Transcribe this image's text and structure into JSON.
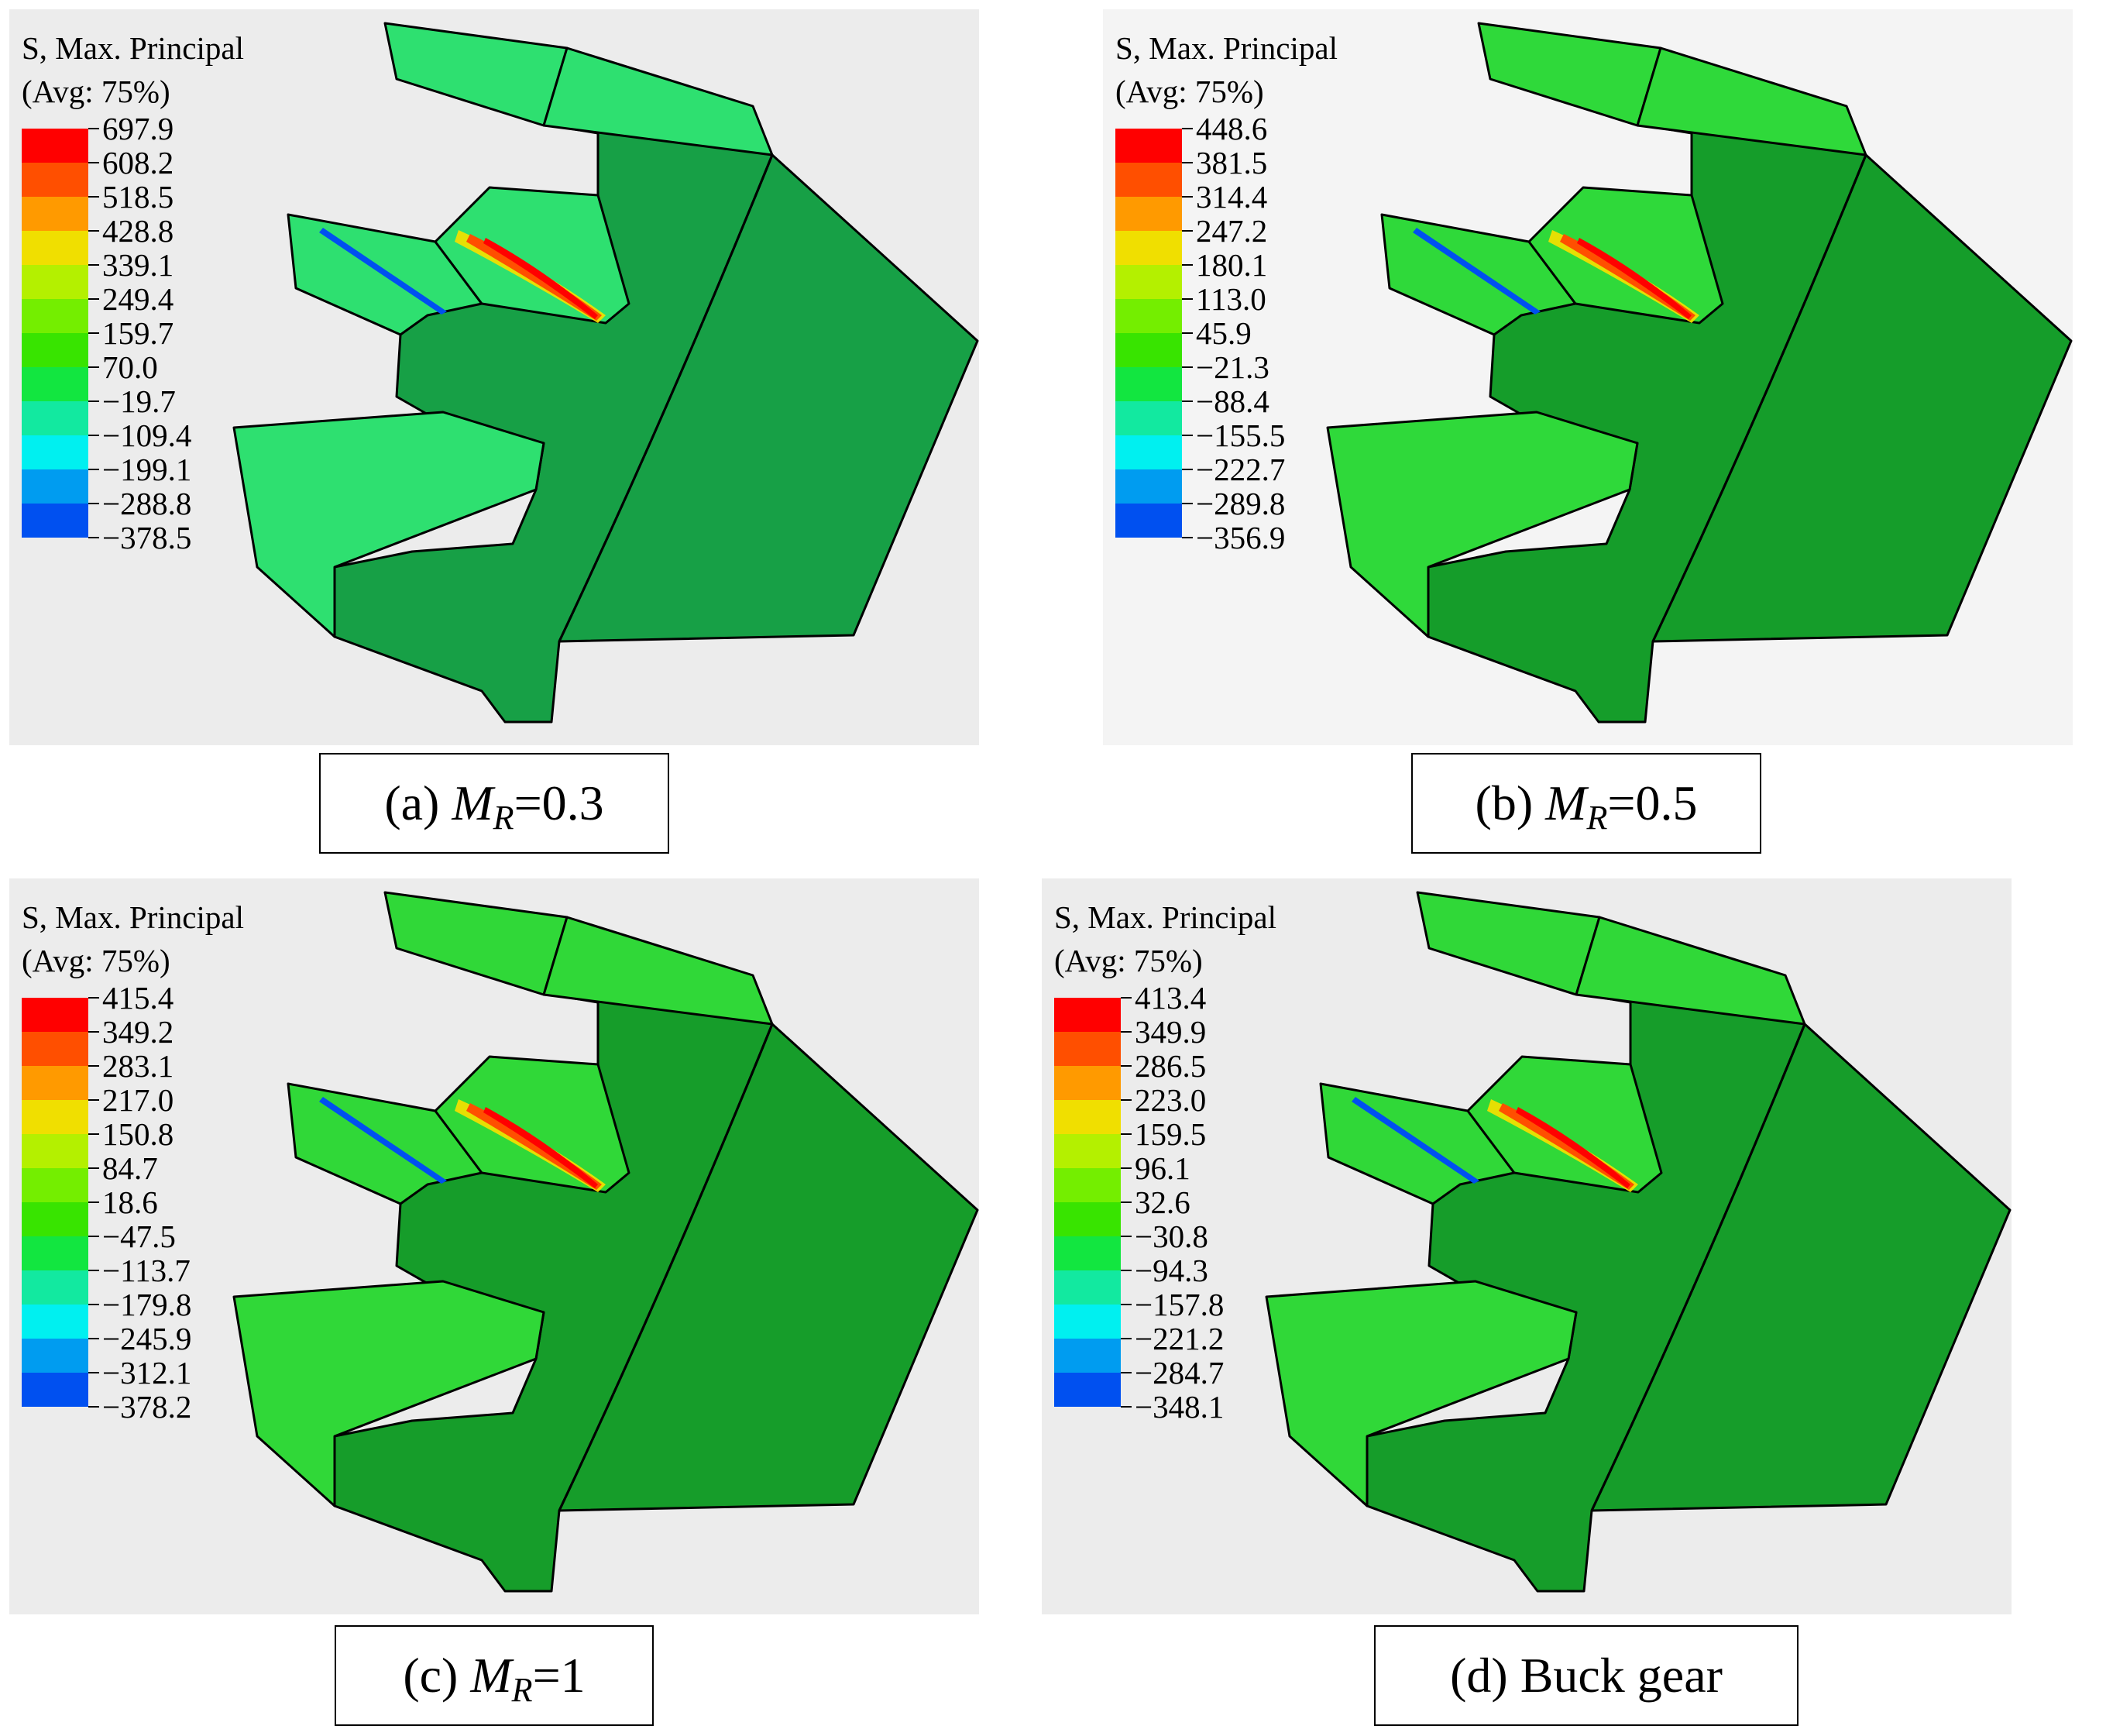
{
  "panels": [
    {
      "id": "a",
      "legend": {
        "title_line1": "S, Max. Principal",
        "title_line2": "(Avg: 75%)",
        "ticks": [
          "697.9",
          "608.2",
          "518.5",
          "428.8",
          "339.1",
          "249.4",
          "159.7",
          "70.0",
          "−19.7",
          "−109.4",
          "−199.1",
          "−288.8",
          "−378.5"
        ]
      },
      "caption": {
        "prefix": "(a) ",
        "variable": "M",
        "subscript": "R",
        "suffix": "=0.3"
      },
      "body_color": "#17a046",
      "tooth_face_color": "#2ee070"
    },
    {
      "id": "b",
      "legend": {
        "title_line1": "S, Max. Principal",
        "title_line2": "(Avg: 75%)",
        "ticks": [
          "448.6",
          "381.5",
          "314.4",
          "247.2",
          "180.1",
          "113.0",
          "45.9",
          "−21.3",
          "−88.4",
          "−155.5",
          "−222.7",
          "−289.8",
          "−356.9"
        ]
      },
      "caption": {
        "prefix": "(b) ",
        "variable": "M",
        "subscript": "R",
        "suffix": "=0.5"
      },
      "body_color": "#159d2a",
      "tooth_face_color": "#2fd93a"
    },
    {
      "id": "c",
      "legend": {
        "title_line1": "S, Max. Principal",
        "title_line2": "(Avg: 75%)",
        "ticks": [
          "415.4",
          "349.2",
          "283.1",
          "217.0",
          "150.8",
          "84.7",
          "18.6",
          "−47.5",
          "−113.7",
          "−179.8",
          "−245.9",
          "−312.1",
          "−378.2"
        ]
      },
      "caption": {
        "prefix": "(c) ",
        "variable": "M",
        "subscript": "R",
        "suffix": "=1"
      },
      "body_color": "#169d2a",
      "tooth_face_color": "#30d838"
    },
    {
      "id": "d",
      "legend": {
        "title_line1": "S, Max. Principal",
        "title_line2": "(Avg: 75%)",
        "ticks": [
          "413.4",
          "349.9",
          "286.5",
          "223.0",
          "159.5",
          "96.1",
          "32.6",
          "−30.8",
          "−94.3",
          "−157.8",
          "−221.2",
          "−284.7",
          "−348.1"
        ]
      },
      "caption": {
        "prefix": "(d) Buck gear",
        "variable": "",
        "subscript": "",
        "suffix": ""
      },
      "body_color": "#169d2a",
      "tooth_face_color": "#30d838"
    }
  ],
  "colormap": [
    "#ff0000",
    "#ff4f00",
    "#ff9a00",
    "#f0df00",
    "#b4f000",
    "#74ee00",
    "#38e400",
    "#12e640",
    "#12e9a0",
    "#00f0f0",
    "#009cf0",
    "#0050f0",
    "#0000f0"
  ]
}
